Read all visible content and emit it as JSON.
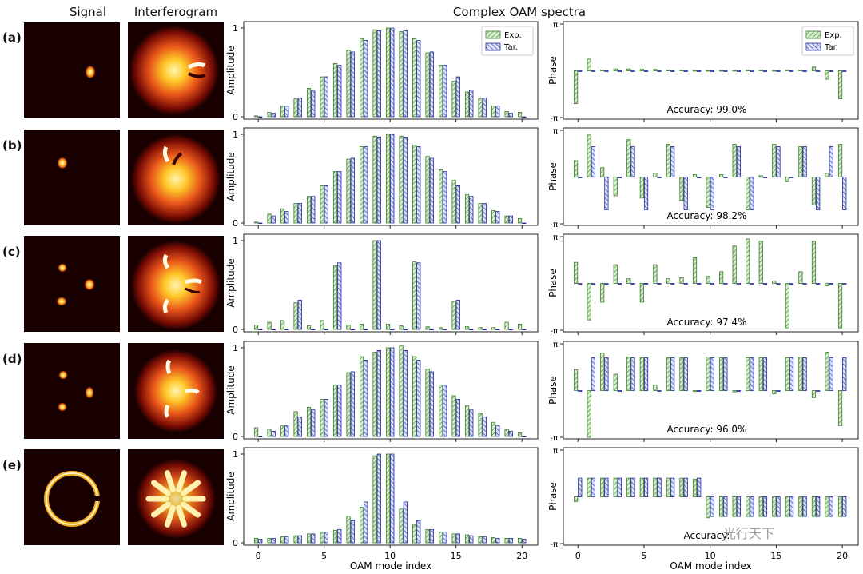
{
  "headers": {
    "signal": "Signal",
    "interferogram": "Interferogram",
    "spectra": "Complex OAM spectra"
  },
  "watermark": "光行天下",
  "colors": {
    "exp_stroke": "#3a7d2a",
    "exp_fill": "#d8ecd0",
    "tar_stroke": "#1f2a9c",
    "tar_fill": "#dde1f6",
    "background": "#180000"
  },
  "chart_data": {
    "type": "bar",
    "x_label": "OAM mode index",
    "x_ticks": [
      0,
      5,
      10,
      15,
      20
    ],
    "amplitude_axis": {
      "label": "Amplitude",
      "ylim": [
        0,
        1
      ],
      "ticks": [
        0,
        1
      ]
    },
    "phase_axis": {
      "label": "Phase",
      "tick_labels": [
        "-π",
        "π"
      ],
      "ylim_over_pi": [
        -1,
        1
      ]
    },
    "legend": {
      "exp": "Exp.",
      "tar": "Tar.",
      "position": "top-right"
    },
    "rows": [
      {
        "label": "(a)",
        "accuracy": "Accuracy: 99.0%",
        "amp_exp": [
          0.01,
          0.05,
          0.12,
          0.2,
          0.32,
          0.45,
          0.6,
          0.75,
          0.88,
          0.98,
          1.0,
          0.96,
          0.88,
          0.72,
          0.58,
          0.4,
          0.28,
          0.2,
          0.12,
          0.06,
          0.05
        ],
        "amp_tar": [
          0.0,
          0.04,
          0.12,
          0.21,
          0.3,
          0.45,
          0.58,
          0.73,
          0.86,
          0.97,
          1.0,
          0.97,
          0.86,
          0.73,
          0.58,
          0.45,
          0.3,
          0.21,
          0.12,
          0.04,
          0.0
        ],
        "phase_exp": [
          -0.7,
          0.25,
          0.02,
          0.04,
          0.04,
          0.03,
          0.03,
          0.02,
          0.02,
          0.01,
          0.01,
          0.01,
          0.01,
          0.02,
          0.02,
          0.01,
          0.02,
          0.02,
          0.08,
          -0.18,
          -0.6
        ],
        "phase_tar": [
          0,
          0,
          0,
          0,
          0,
          0,
          0,
          0,
          0,
          0,
          0,
          0,
          0,
          0,
          0,
          0,
          0,
          0,
          0,
          0,
          0
        ]
      },
      {
        "label": "(b)",
        "accuracy": "Accuracy: 98.2%",
        "amp_exp": [
          0.01,
          0.1,
          0.16,
          0.22,
          0.3,
          0.42,
          0.58,
          0.72,
          0.86,
          0.98,
          1.0,
          0.98,
          0.88,
          0.75,
          0.6,
          0.48,
          0.32,
          0.22,
          0.14,
          0.08,
          0.05
        ],
        "amp_tar": [
          0.0,
          0.08,
          0.13,
          0.22,
          0.3,
          0.42,
          0.58,
          0.73,
          0.86,
          0.97,
          1.0,
          0.97,
          0.86,
          0.73,
          0.58,
          0.42,
          0.3,
          0.22,
          0.13,
          0.08,
          0.0
        ],
        "phase_exp": [
          0.35,
          0.9,
          0.2,
          -0.4,
          0.8,
          -0.45,
          0.08,
          0.7,
          -0.5,
          0.05,
          -0.65,
          0.05,
          0.7,
          -0.7,
          0.03,
          0.7,
          -0.1,
          0.65,
          -0.6,
          0.08,
          0.7
        ],
        "phase_tar": [
          0,
          0.65,
          -0.7,
          0,
          0.65,
          -0.7,
          0,
          0.65,
          -0.7,
          0,
          -0.7,
          0,
          0.65,
          -0.7,
          0,
          0.65,
          0,
          0.65,
          -0.7,
          0.65,
          -0.7
        ]
      },
      {
        "label": "(c)",
        "accuracy": "Accuracy: 97.4%",
        "amp_exp": [
          0.05,
          0.08,
          0.1,
          0.3,
          0.04,
          0.1,
          0.72,
          0.05,
          0.06,
          1.0,
          0.06,
          0.04,
          0.76,
          0.03,
          0.02,
          0.32,
          0.03,
          0.02,
          0.02,
          0.08,
          0.06
        ],
        "amp_tar": [
          0.0,
          0.0,
          0.0,
          0.33,
          0.0,
          0.0,
          0.75,
          0.0,
          0.0,
          1.0,
          0.0,
          0.0,
          0.75,
          0.0,
          0.0,
          0.33,
          0.0,
          0.0,
          0.0,
          0.0,
          0.0
        ],
        "phase_exp": [
          0.45,
          -0.78,
          -0.4,
          0.4,
          0.1,
          -0.4,
          0.4,
          0.1,
          0.12,
          0.55,
          0.15,
          0.25,
          0.8,
          0.95,
          0.9,
          0.05,
          -0.95,
          0.25,
          0.9,
          -0.05,
          -0.95
        ],
        "phase_tar": [
          0,
          0,
          0,
          0,
          0,
          0,
          0,
          0,
          0,
          0,
          0,
          0,
          0,
          0,
          0,
          0,
          0,
          0,
          0,
          0,
          0
        ]
      },
      {
        "label": "(d)",
        "accuracy": "Accuracy: 96.0%",
        "amp_exp": [
          0.1,
          0.08,
          0.12,
          0.28,
          0.33,
          0.42,
          0.58,
          0.72,
          0.9,
          0.95,
          1.0,
          1.02,
          0.9,
          0.76,
          0.58,
          0.46,
          0.35,
          0.26,
          0.16,
          0.08,
          0.04
        ],
        "amp_tar": [
          0.0,
          0.06,
          0.12,
          0.22,
          0.3,
          0.42,
          0.58,
          0.73,
          0.86,
          0.97,
          1.0,
          0.97,
          0.86,
          0.73,
          0.58,
          0.42,
          0.3,
          0.22,
          0.12,
          0.06,
          0.0
        ],
        "phase_exp": [
          0.45,
          -1.0,
          0.8,
          0.35,
          0.72,
          0.7,
          0.12,
          0.7,
          0.7,
          -0.02,
          0.72,
          0.7,
          -0.03,
          0.7,
          0.7,
          -0.07,
          0.7,
          0.72,
          -0.15,
          0.82,
          -0.75
        ],
        "phase_tar": [
          0,
          0.7,
          0.7,
          0,
          0.7,
          0.7,
          0,
          0.7,
          0.7,
          0,
          0.7,
          0.7,
          0,
          0.7,
          0.7,
          0,
          0.7,
          0.7,
          0,
          0.7,
          0.7
        ]
      },
      {
        "label": "(e)",
        "accuracy": "Accuracy: ",
        "amp_exp": [
          0.05,
          0.05,
          0.07,
          0.08,
          0.1,
          0.12,
          0.14,
          0.3,
          0.4,
          0.98,
          1.0,
          0.38,
          0.2,
          0.15,
          0.12,
          0.1,
          0.09,
          0.07,
          0.06,
          0.05,
          0.05
        ],
        "amp_tar": [
          0.04,
          0.05,
          0.07,
          0.08,
          0.1,
          0.12,
          0.15,
          0.25,
          0.46,
          1.0,
          1.0,
          0.46,
          0.25,
          0.15,
          0.12,
          0.1,
          0.08,
          0.07,
          0.05,
          0.05,
          0.04
        ],
        "phase_exp": [
          -0.1,
          0.4,
          0.4,
          0.4,
          0.4,
          0.4,
          0.4,
          0.4,
          0.4,
          0.38,
          -0.45,
          -0.42,
          -0.42,
          -0.42,
          -0.42,
          -0.42,
          -0.42,
          -0.42,
          -0.42,
          -0.42,
          -0.42
        ],
        "phase_tar": [
          0.4,
          0.4,
          0.4,
          0.4,
          0.4,
          0.4,
          0.4,
          0.4,
          0.4,
          0.4,
          -0.42,
          -0.42,
          -0.42,
          -0.42,
          -0.42,
          -0.42,
          -0.42,
          -0.42,
          -0.42,
          -0.42,
          -0.42
        ]
      }
    ]
  }
}
